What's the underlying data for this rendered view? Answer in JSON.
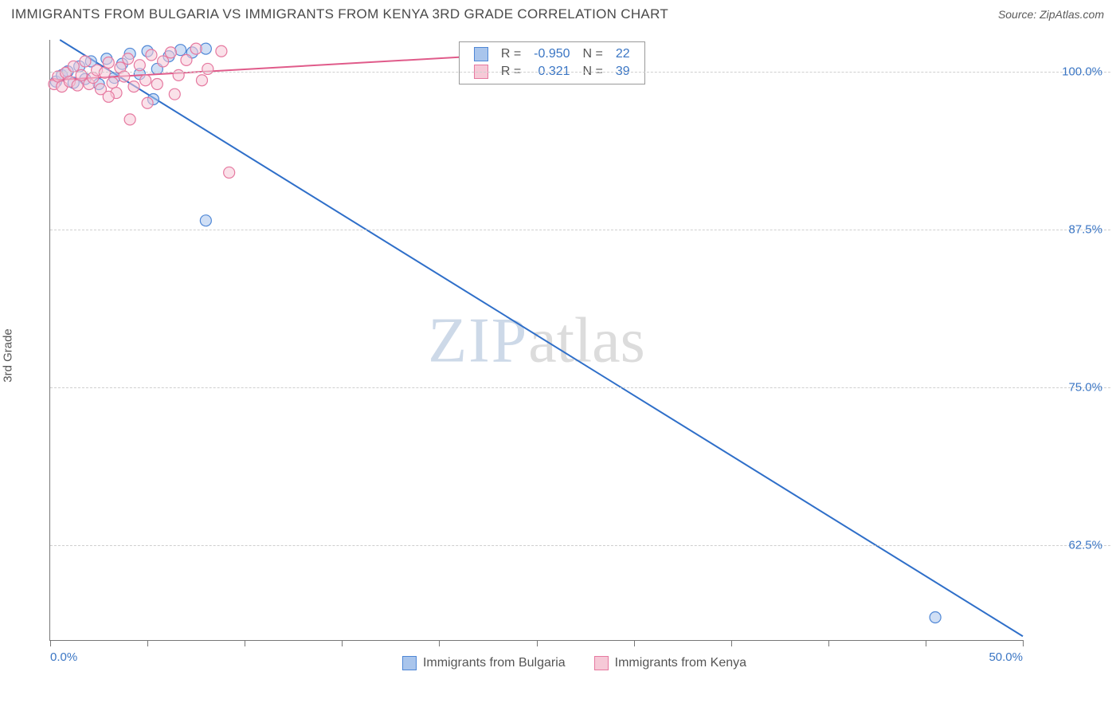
{
  "title": "IMMIGRANTS FROM BULGARIA VS IMMIGRANTS FROM KENYA 3RD GRADE CORRELATION CHART",
  "source_label": "Source: ",
  "source_name": "ZipAtlas.com",
  "y_axis_label": "3rd Grade",
  "watermark": {
    "part1": "ZIP",
    "part2": "atlas"
  },
  "chart": {
    "type": "scatter",
    "xlim": [
      0,
      50
    ],
    "ylim": [
      55,
      102.5
    ],
    "x_ticks": [
      0,
      5,
      10,
      15,
      20,
      25,
      30,
      35,
      40,
      45,
      50
    ],
    "x_tick_labels": {
      "0": "0.0%",
      "50": "50.0%"
    },
    "y_ticks": [
      62.5,
      75.0,
      87.5,
      100.0
    ],
    "y_tick_labels": [
      "62.5%",
      "75.0%",
      "87.5%",
      "100.0%"
    ],
    "grid_color": "#cfcfcf",
    "axis_color": "#777777",
    "background_color": "#ffffff",
    "marker_radius": 7,
    "marker_stroke_width": 1.2,
    "line_width": 2,
    "series": [
      {
        "name": "Immigrants from Bulgaria",
        "color_fill": "#a9c5ec",
        "color_stroke": "#4f87d6",
        "line_color": "#2f6fc9",
        "R": "-0.950",
        "N": "22",
        "trend": {
          "x1": 0.5,
          "y1": 102.5,
          "x2": 50.0,
          "y2": 55.3
        },
        "points": [
          {
            "x": 0.3,
            "y": 99.2
          },
          {
            "x": 0.6,
            "y": 99.7
          },
          {
            "x": 0.9,
            "y": 100.0
          },
          {
            "x": 1.2,
            "y": 99.1
          },
          {
            "x": 1.5,
            "y": 100.4
          },
          {
            "x": 1.8,
            "y": 99.4
          },
          {
            "x": 2.1,
            "y": 100.8
          },
          {
            "x": 2.5,
            "y": 99.0
          },
          {
            "x": 2.9,
            "y": 101.0
          },
          {
            "x": 3.3,
            "y": 99.5
          },
          {
            "x": 3.7,
            "y": 100.6
          },
          {
            "x": 4.1,
            "y": 101.4
          },
          {
            "x": 4.6,
            "y": 99.8
          },
          {
            "x": 5.0,
            "y": 101.6
          },
          {
            "x": 5.5,
            "y": 100.2
          },
          {
            "x": 5.3,
            "y": 97.8
          },
          {
            "x": 6.1,
            "y": 101.2
          },
          {
            "x": 6.7,
            "y": 101.7
          },
          {
            "x": 7.3,
            "y": 101.5
          },
          {
            "x": 8.0,
            "y": 101.8
          },
          {
            "x": 8.0,
            "y": 88.2
          },
          {
            "x": 45.5,
            "y": 56.8
          }
        ]
      },
      {
        "name": "Immigrants from Kenya",
        "color_fill": "#f6c9d7",
        "color_stroke": "#e679a0",
        "line_color": "#e05b8a",
        "R": "0.321",
        "N": "39",
        "trend": {
          "x1": 0.0,
          "y1": 99.3,
          "x2": 23.0,
          "y2": 101.3
        },
        "points": [
          {
            "x": 0.2,
            "y": 99.0
          },
          {
            "x": 0.4,
            "y": 99.6
          },
          {
            "x": 0.6,
            "y": 98.8
          },
          {
            "x": 0.8,
            "y": 99.9
          },
          {
            "x": 1.0,
            "y": 99.2
          },
          {
            "x": 1.2,
            "y": 100.4
          },
          {
            "x": 1.4,
            "y": 98.9
          },
          {
            "x": 1.6,
            "y": 99.7
          },
          {
            "x": 1.8,
            "y": 100.8
          },
          {
            "x": 2.0,
            "y": 99.0
          },
          {
            "x": 2.2,
            "y": 99.5
          },
          {
            "x": 2.4,
            "y": 100.1
          },
          {
            "x": 2.6,
            "y": 98.6
          },
          {
            "x": 2.8,
            "y": 99.9
          },
          {
            "x": 3.0,
            "y": 100.7
          },
          {
            "x": 3.2,
            "y": 99.1
          },
          {
            "x": 3.4,
            "y": 98.3
          },
          {
            "x": 3.6,
            "y": 100.3
          },
          {
            "x": 3.8,
            "y": 99.6
          },
          {
            "x": 4.0,
            "y": 101.0
          },
          {
            "x": 4.3,
            "y": 98.8
          },
          {
            "x": 4.6,
            "y": 100.5
          },
          {
            "x": 4.9,
            "y": 99.3
          },
          {
            "x": 5.2,
            "y": 101.3
          },
          {
            "x": 5.5,
            "y": 99.0
          },
          {
            "x": 5.8,
            "y": 100.8
          },
          {
            "x": 4.1,
            "y": 96.2
          },
          {
            "x": 6.2,
            "y": 101.5
          },
          {
            "x": 6.6,
            "y": 99.7
          },
          {
            "x": 7.0,
            "y": 100.9
          },
          {
            "x": 7.5,
            "y": 101.8
          },
          {
            "x": 8.1,
            "y": 100.2
          },
          {
            "x": 8.8,
            "y": 101.6
          },
          {
            "x": 6.4,
            "y": 98.2
          },
          {
            "x": 7.8,
            "y": 99.3
          },
          {
            "x": 9.2,
            "y": 92.0
          },
          {
            "x": 23.0,
            "y": 101.3
          },
          {
            "x": 5.0,
            "y": 97.5
          },
          {
            "x": 3.0,
            "y": 98.0
          }
        ]
      }
    ]
  },
  "legend_top": {
    "rows": [
      {
        "swatch_fill": "#a9c5ec",
        "swatch_stroke": "#4f87d6",
        "r_label": "R =",
        "r_value": "-0.950",
        "n_label": "N =",
        "n_value": "22"
      },
      {
        "swatch_fill": "#f6c9d7",
        "swatch_stroke": "#e679a0",
        "r_label": "R =",
        "r_value": "0.321",
        "n_label": "N =",
        "n_value": "39"
      }
    ]
  },
  "legend_bottom": [
    {
      "swatch_fill": "#a9c5ec",
      "swatch_stroke": "#4f87d6",
      "label": "Immigrants from Bulgaria"
    },
    {
      "swatch_fill": "#f6c9d7",
      "swatch_stroke": "#e679a0",
      "label": "Immigrants from Kenya"
    }
  ]
}
